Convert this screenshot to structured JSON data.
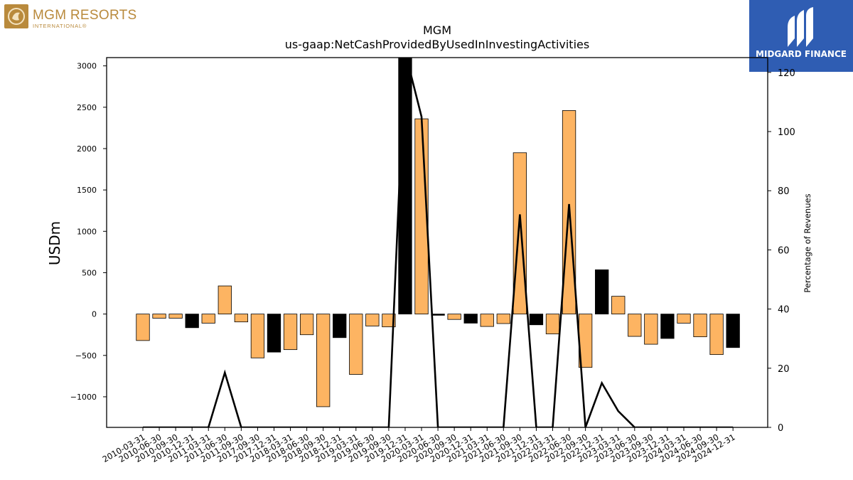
{
  "logos": {
    "left_name": "MGM RESORTS",
    "left_sub": "INTERNATIONAL®",
    "right_name": "MIDGARD FINANCE"
  },
  "chart_data": {
    "type": "bar",
    "title": "MGM",
    "subtitle": "us-gaap:NetCashProvidedByUsedInInvestingActivities",
    "ylabel": "USDm",
    "y2label": "Percentage of Revenues",
    "ylim": [
      -1370,
      3100
    ],
    "y2lim": [
      0,
      125
    ],
    "yticks": [
      -1000,
      -500,
      0,
      500,
      1000,
      1500,
      2000,
      2500,
      3000
    ],
    "y2ticks": [
      0,
      20,
      40,
      60,
      80,
      100,
      120
    ],
    "colors": {
      "positive_growth": "#fdb462",
      "negative_growth": "#000000",
      "line": "#000000"
    },
    "categories": [
      "2010-03-31",
      "2010-06-30",
      "2010-09-30",
      "2010-12-31",
      "2011-03-31",
      "2011-06-30",
      "2011-09-30",
      "2017-09-30",
      "2017-12-31",
      "2018-03-31",
      "2018-06-30",
      "2018-09-30",
      "2018-12-31",
      "2019-03-31",
      "2019-06-30",
      "2019-09-30",
      "2019-12-31",
      "2020-03-31",
      "2020-06-30",
      "2020-09-30",
      "2020-12-31",
      "2021-03-31",
      "2021-06-30",
      "2021-09-30",
      "2021-12-31",
      "2022-03-31",
      "2022-06-30",
      "2022-09-30",
      "2022-12-31",
      "2023-03-31",
      "2023-06-30",
      "2023-09-30",
      "2023-12-31",
      "2024-03-31",
      "2024-06-30",
      "2024-09-30",
      "2024-12-31"
    ],
    "series": [
      {
        "values": [
          -320,
          -50,
          -50,
          -165,
          -110,
          340,
          -95,
          -530,
          -460,
          -430,
          -250,
          -1120,
          -285,
          -730,
          -145,
          -155,
          3200,
          2360,
          -15,
          -65,
          -110,
          -150,
          -115,
          1950,
          -130,
          -240,
          2460,
          -645,
          535,
          215,
          -270,
          -365,
          -295,
          -110,
          -275,
          -490,
          -405
        ],
        "bar_colors": [
          "orange",
          "orange",
          "orange",
          "black",
          "orange",
          "orange",
          "orange",
          "orange",
          "black",
          "orange",
          "orange",
          "orange",
          "black",
          "orange",
          "orange",
          "orange",
          "black",
          "orange",
          "black",
          "orange",
          "black",
          "orange",
          "orange",
          "orange",
          "black",
          "orange",
          "orange",
          "orange",
          "black",
          "orange",
          "orange",
          "orange",
          "black",
          "orange",
          "orange",
          "orange",
          "black"
        ]
      },
      {
        "type": "line",
        "values": [
          0,
          0,
          0,
          0,
          0,
          18.5,
          0,
          0,
          0,
          0,
          0,
          0,
          0,
          0,
          0,
          0,
          127,
          105,
          0,
          0,
          0,
          0,
          0,
          72,
          0,
          0,
          75.5,
          0,
          15,
          5.5,
          0,
          0,
          0,
          0,
          0,
          0,
          0
        ]
      }
    ]
  }
}
